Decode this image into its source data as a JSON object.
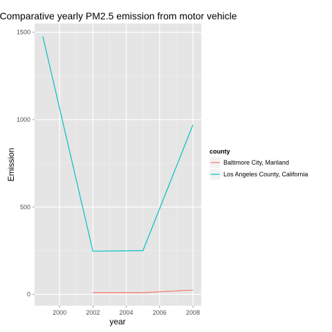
{
  "chart_data": {
    "type": "line",
    "title": "Comparative yearly PM2.5 emission from motor vehicle",
    "xlabel": "year",
    "ylabel": "Emission",
    "xlim": [
      1998.5,
      2008.5
    ],
    "ylim": [
      -65,
      1550
    ],
    "x_ticks": [
      2000,
      2002,
      2004,
      2006,
      2008
    ],
    "y_ticks": [
      0,
      500,
      1000,
      1500
    ],
    "grid": true,
    "legend": {
      "title": "county",
      "placement": "right"
    },
    "series": [
      {
        "name": "Baltimore City, Mariland",
        "color": "#F8766D",
        "x": [
          2002,
          2005,
          2008
        ],
        "y": [
          10,
          10,
          25
        ]
      },
      {
        "name": "Los Angeles County, California",
        "color": "#00BFC4",
        "x": [
          1999,
          2002,
          2005,
          2008
        ],
        "y": [
          1475,
          247,
          250,
          970
        ]
      }
    ]
  }
}
